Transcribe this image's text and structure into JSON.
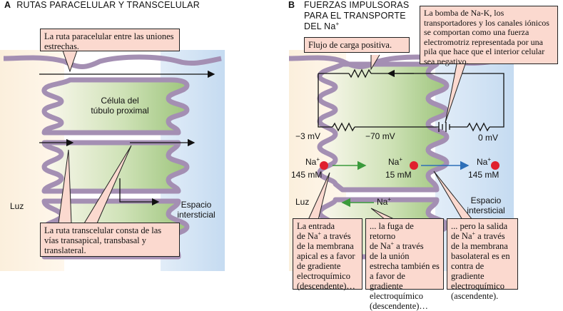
{
  "panel_a": {
    "letter": "A",
    "title": "RUTAS PARACELULAR Y TRANSCELULAR",
    "callout_paracellular": "La ruta paracelular entre las uniones estrechas.",
    "cell_label_1": "Célula del",
    "cell_label_2": "túbulo proximal",
    "lumen": "Luz",
    "interstitial_1": "Espacio",
    "interstitial_2": "intersticial",
    "callout_transcellular": "La ruta transcelular consta de las vías transapical, transbasal y translateral."
  },
  "panel_b": {
    "letter": "B",
    "title_1": "FUERZAS IMPULSORAS",
    "title_2": "PARA EL TRANSPORTE",
    "title_3": "DEL Na",
    "title_sup": "+",
    "callout_flow": "Flujo de carga positiva.",
    "callout_pump": "La bomba de Na-K, los transportadores y los canales iónicos se comportan como una fuerza electromotriz representada por una pila que hace que el interior celular sea negativo.",
    "v_left": "−3 mV",
    "v_mid": "−70 mV",
    "v_right": "0 mV",
    "na": "Na",
    "na_sup": "+",
    "conc_left": "145 mM",
    "conc_mid": "15 mM",
    "conc_right": "145 mM",
    "lumen": "Luz",
    "interstitial_1": "Espacio",
    "interstitial_2": "intersticial",
    "callout_entry_1": "La entrada",
    "callout_entry_2a": "de Na",
    "callout_entry_2b": " a través",
    "callout_entry_3": "de la membrana apical es a favor de gradiente electroquímico (descendente)…",
    "callout_backleak_1": "... la fuga de retorno",
    "callout_backleak_2a": "de Na",
    "callout_backleak_2b": " a través",
    "callout_backleak_3": "de la unión estrecha también es a favor de gradiente electroquímico (descendente)…",
    "callout_exit_1": "... pero la salida",
    "callout_exit_2a": "de Na",
    "callout_exit_2b": " a través",
    "callout_exit_3": "de la membrana basolateral es en contra de gradiente electroquímico (ascendente)."
  },
  "colors": {
    "callout_fill": "#fbd9cf",
    "membrane": "#a48fb3",
    "cell_green": "#a9cc8a",
    "interstitial_blue": "#cfe1f2",
    "na_dot": "#e0202e",
    "arrow_green": "#3b9a3c",
    "arrow_blue": "#2d6fb8"
  },
  "icons": [
    "battery-icon",
    "resistor-icon",
    "na-ion-icon"
  ]
}
